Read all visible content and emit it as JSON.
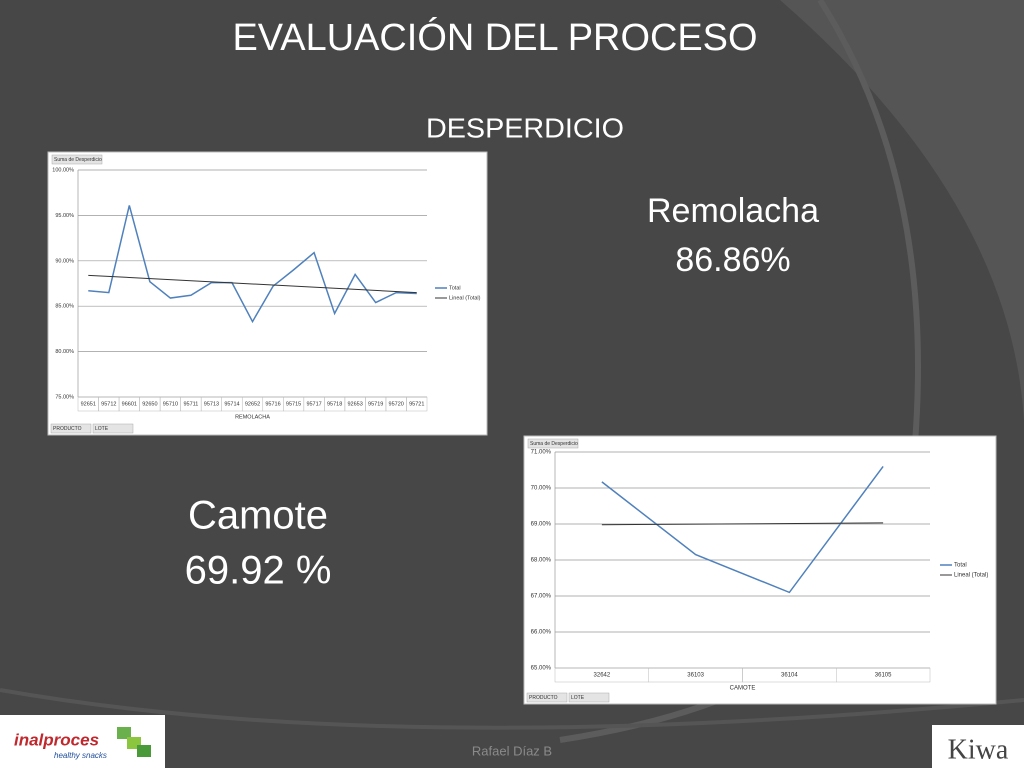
{
  "slide": {
    "title": "EVALUACIÓN DEL PROCESO",
    "subtitle": "DESPERDICIO",
    "remolacha_label": "Remolacha",
    "remolacha_value": "86.86%",
    "camote_label": "Camote",
    "camote_value": "69.92 %",
    "author": "Rafael Díaz B",
    "logo_left": "inalproces",
    "logo_left_tagline": "healthy snacks",
    "logo_right": "Kiwa"
  },
  "chart_data": [
    {
      "type": "line",
      "title": "Suma de Desperdicio",
      "x_label": "REMOLACHA",
      "categories": [
        "92651",
        "95712",
        "96601",
        "92650",
        "95710",
        "95711",
        "95713",
        "95714",
        "92652",
        "95716",
        "95715",
        "95717",
        "95718",
        "92653",
        "95719",
        "95720",
        "95721"
      ],
      "series": [
        {
          "name": "Total",
          "color": "#4f81bd",
          "values": [
            86.7,
            86.5,
            96.1,
            87.7,
            85.9,
            86.2,
            87.6,
            87.6,
            83.3,
            87.2,
            89.0,
            90.9,
            84.2,
            88.5,
            85.4,
            86.5,
            86.4
          ]
        }
      ],
      "trend": {
        "name": "Lineal (Total)",
        "color": "#333333",
        "values": [
          88.4,
          86.5
        ]
      },
      "ylim": [
        75,
        100
      ],
      "yticks": [
        {
          "value": 75,
          "label": "75.00%"
        },
        {
          "value": 80,
          "label": "80.00%"
        },
        {
          "value": 85,
          "label": "85.00%"
        },
        {
          "value": 90,
          "label": "90.00%"
        },
        {
          "value": 95,
          "label": "95.00%"
        },
        {
          "value": 100,
          "label": "100.00%"
        }
      ],
      "grid": true,
      "legend": "right",
      "filters": [
        "PRODUCTO",
        "LOTE"
      ]
    },
    {
      "type": "line",
      "title": "Suma de Desperdicio",
      "x_label": "CAMOTE",
      "categories": [
        "32642",
        "36103",
        "36104",
        "36105"
      ],
      "series": [
        {
          "name": "Total",
          "color": "#4f81bd",
          "values": [
            70.17,
            68.15,
            67.1,
            70.6
          ]
        }
      ],
      "trend": {
        "name": "Lineal (Total)",
        "color": "#333333",
        "values": [
          68.98,
          69.03
        ]
      },
      "ylim": [
        65,
        71
      ],
      "yticks": [
        {
          "value": 65,
          "label": "65.00%"
        },
        {
          "value": 66,
          "label": "66.00%"
        },
        {
          "value": 67,
          "label": "67.00%"
        },
        {
          "value": 68,
          "label": "68.00%"
        },
        {
          "value": 69,
          "label": "69.00%"
        },
        {
          "value": 70,
          "label": "70.00%"
        },
        {
          "value": 71,
          "label": "71.00%"
        }
      ],
      "grid": true,
      "legend": "right",
      "filters": [
        "PRODUCTO",
        "LOTE"
      ]
    }
  ]
}
